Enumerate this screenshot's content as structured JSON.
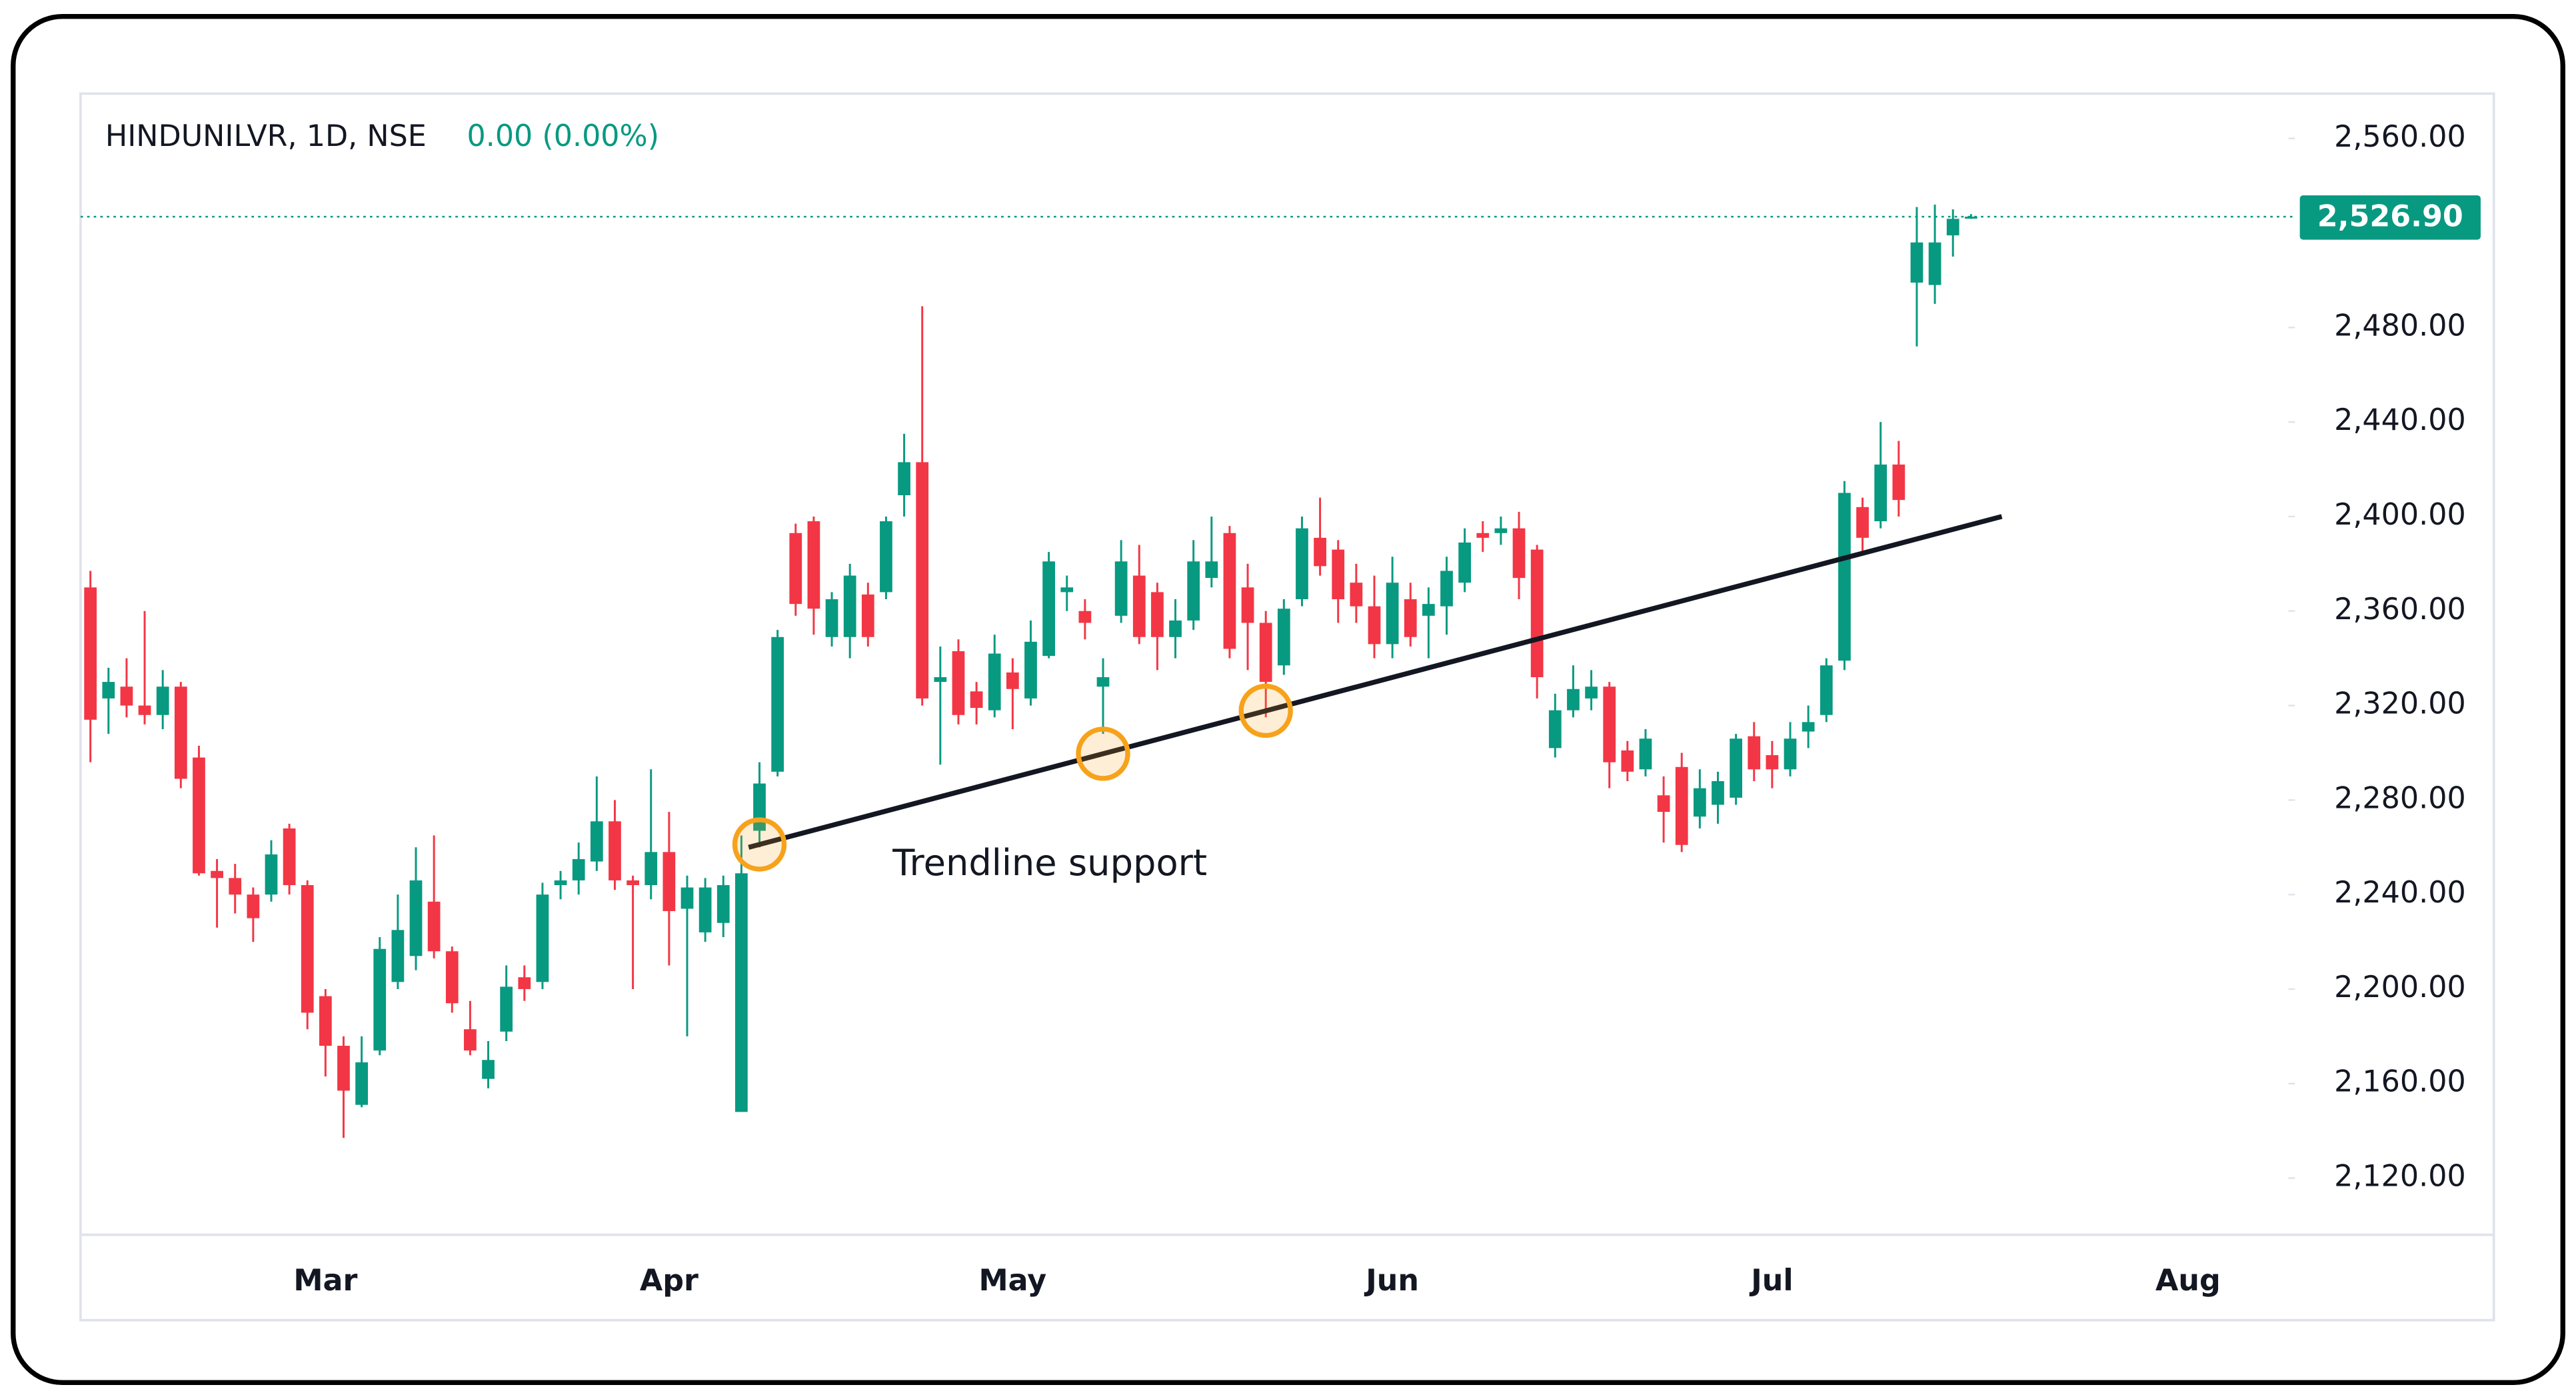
{
  "chart_data": {
    "type": "candlestick",
    "title": "HINDUNILVR, 1D, NSE",
    "change_label": "0.00 (0.00%)",
    "up_color": "#089981",
    "down_color": "#f23645",
    "categories": [
      null,
      null,
      null,
      null,
      null,
      null,
      null,
      null,
      null,
      null,
      null,
      null,
      null,
      "Mar",
      null,
      null,
      null,
      null,
      null,
      null,
      null,
      null,
      null,
      null,
      null,
      null,
      null,
      null,
      null,
      null,
      null,
      null,
      "Apr",
      null,
      null,
      null,
      null,
      null,
      null,
      null,
      null,
      null,
      null,
      null,
      null,
      null,
      null,
      null,
      null,
      null,
      null,
      "May",
      null,
      null,
      null,
      null,
      null,
      null,
      null,
      null,
      null,
      null,
      null,
      null,
      null,
      null,
      null,
      null,
      null,
      null,
      null,
      null,
      "Jun",
      null,
      null,
      null,
      null,
      null,
      null,
      null,
      null,
      null,
      null,
      null,
      null,
      null,
      null,
      null,
      null,
      null,
      null,
      null,
      null,
      "Jul",
      null,
      null,
      null,
      null,
      null,
      null,
      null,
      null,
      null,
      null,
      null,
      null,
      null,
      null,
      null,
      null,
      null,
      null,
      null,
      null,
      null,
      null,
      "Aug",
      null,
      null,
      null,
      null
    ],
    "open": [
      2370,
      2323,
      2328,
      2320,
      2316,
      2328,
      2298,
      2250,
      2247,
      2240,
      2240,
      2268,
      2244,
      2197,
      2176,
      2151,
      2174,
      2203,
      2214,
      2237,
      2216,
      2183,
      2162,
      2182,
      2205,
      2203,
      2244,
      2246,
      2254,
      2271,
      2246,
      2244,
      2258,
      2234,
      2224,
      2228,
      2148,
      2267,
      2292,
      2393,
      2398,
      2349,
      2349,
      2367,
      2368,
      2409,
      2423,
      2330,
      2343,
      2326,
      2318,
      2334,
      2323,
      2341,
      2368,
      2360,
      2328,
      2358,
      2375,
      2368,
      2349,
      2356,
      2374,
      2393,
      2370,
      2355,
      2337,
      2365,
      2391,
      2386,
      2372,
      2362,
      2346,
      2365,
      2358,
      2362,
      2372,
      2393,
      2393,
      2395,
      2386,
      2302,
      2318,
      2323,
      2328,
      2301,
      2293,
      2282,
      2294,
      2273,
      2278,
      2281,
      2307,
      2299,
      2293,
      2309,
      2316,
      2339,
      2404,
      2398,
      2422,
      2499,
      2498,
      2519,
      2526.9,
      null,
      null,
      null,
      null,
      null,
      null,
      null,
      null,
      null,
      null,
      null,
      null,
      null,
      null,
      null,
      null
    ],
    "high": [
      2377,
      2336,
      2340,
      2360,
      2335,
      2330,
      2303,
      2255,
      2253,
      2243,
      2263,
      2270,
      2246,
      2200,
      2180,
      2180,
      2222,
      2240,
      2260,
      2265,
      2218,
      2195,
      2178,
      2210,
      2210,
      2245,
      2250,
      2262,
      2290,
      2280,
      2248,
      2293,
      2275,
      2248,
      2247,
      2248,
      2265,
      2296,
      2352,
      2397,
      2400,
      2368,
      2380,
      2372,
      2400,
      2435,
      2489,
      2345,
      2348,
      2330,
      2350,
      2340,
      2356,
      2385,
      2375,
      2365,
      2340,
      2390,
      2388,
      2372,
      2365,
      2390,
      2400,
      2396,
      2380,
      2360,
      2365,
      2400,
      2408,
      2390,
      2380,
      2375,
      2383,
      2372,
      2370,
      2383,
      2395,
      2398,
      2400,
      2402,
      2388,
      2325,
      2337,
      2335,
      2330,
      2305,
      2310,
      2290,
      2300,
      2293,
      2292,
      2308,
      2313,
      2305,
      2313,
      2320,
      2340,
      2415,
      2408,
      2440,
      2432,
      2531,
      2532,
      2530,
      2528,
      null,
      null,
      null,
      null,
      null,
      null,
      null,
      null,
      null,
      null,
      null,
      null,
      null,
      null,
      null,
      null
    ],
    "low": [
      2296,
      2308,
      2315,
      2312,
      2310,
      2285,
      2248,
      2226,
      2232,
      2220,
      2237,
      2240,
      2183,
      2163,
      2137,
      2150,
      2172,
      2200,
      2208,
      2213,
      2190,
      2172,
      2158,
      2178,
      2195,
      2200,
      2238,
      2240,
      2250,
      2242,
      2200,
      2238,
      2210,
      2180,
      2220,
      2222,
      2148,
      2260,
      2290,
      2358,
      2350,
      2345,
      2340,
      2345,
      2365,
      2400,
      2320,
      2295,
      2312,
      2312,
      2315,
      2310,
      2320,
      2340,
      2360,
      2348,
      2308,
      2355,
      2346,
      2335,
      2340,
      2352,
      2370,
      2340,
      2335,
      2315,
      2333,
      2362,
      2375,
      2355,
      2355,
      2340,
      2340,
      2345,
      2340,
      2350,
      2368,
      2385,
      2388,
      2365,
      2323,
      2298,
      2315,
      2318,
      2285,
      2288,
      2290,
      2262,
      2258,
      2268,
      2270,
      2278,
      2288,
      2285,
      2290,
      2302,
      2313,
      2335,
      2385,
      2395,
      2400,
      2472,
      2490,
      2510,
      2526,
      null,
      null,
      null,
      null,
      null,
      null,
      null,
      null,
      null,
      null,
      null,
      null,
      null,
      null,
      null,
      null
    ],
    "close": [
      2314,
      2330,
      2320,
      2316,
      2328,
      2289,
      2249,
      2247,
      2240,
      2230,
      2257,
      2244,
      2190,
      2176,
      2157,
      2169,
      2217,
      2225,
      2246,
      2216,
      2194,
      2174,
      2170,
      2201,
      2200,
      2240,
      2246,
      2255,
      2271,
      2246,
      2244,
      2258,
      2233,
      2243,
      2243,
      2244,
      2249,
      2287,
      2349,
      2363,
      2361,
      2365,
      2375,
      2349,
      2398,
      2423,
      2323,
      2332,
      2316,
      2319,
      2342,
      2327,
      2347,
      2381,
      2370,
      2355,
      2332,
      2381,
      2349,
      2349,
      2356,
      2381,
      2381,
      2344,
      2355,
      2330,
      2361,
      2395,
      2379,
      2365,
      2362,
      2346,
      2372,
      2349,
      2363,
      2377,
      2389,
      2391,
      2395,
      2374,
      2332,
      2318,
      2327,
      2328,
      2296,
      2292,
      2306,
      2275,
      2261,
      2285,
      2288,
      2306,
      2293,
      2293,
      2306,
      2313,
      2337,
      2410,
      2391,
      2422,
      2407,
      2516,
      2516,
      2526,
      2526.9,
      null,
      null,
      null,
      null,
      null,
      null,
      null,
      null,
      null,
      null,
      null,
      null,
      null,
      null,
      null,
      null
    ],
    "last_value": 2526.9,
    "last_value_label": "2,526.90",
    "ylim": [
      2096,
      2579
    ],
    "yticks": [
      {
        "value": 2120,
        "label": "2,120.00"
      },
      {
        "value": 2160,
        "label": "2,160.00"
      },
      {
        "value": 2200,
        "label": "2,200.00"
      },
      {
        "value": 2240,
        "label": "2,240.00"
      },
      {
        "value": 2280,
        "label": "2,280.00"
      },
      {
        "value": 2320,
        "label": "2,320.00"
      },
      {
        "value": 2360,
        "label": "2,360.00"
      },
      {
        "value": 2400,
        "label": "2,400.00"
      },
      {
        "value": 2440,
        "label": "2,440.00"
      },
      {
        "value": 2480,
        "label": "2,480.00"
      },
      {
        "value": 2560,
        "label": "2,560.00"
      }
    ],
    "trendline": {
      "label": "Trendline support",
      "color": "#131722",
      "start": {
        "index": 36.4,
        "value": 2260
      },
      "end": {
        "index": 105.7,
        "value": 2400
      },
      "touches": [
        37,
        56,
        65
      ],
      "touch_color": "#f7a21b"
    }
  }
}
